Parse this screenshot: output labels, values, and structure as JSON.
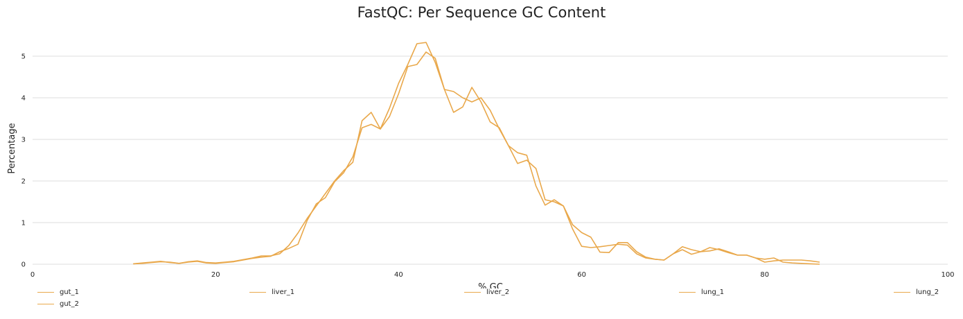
{
  "chart_data": {
    "type": "line",
    "title": "FastQC: Per Sequence GC Content",
    "xlabel": "% GC",
    "ylabel": "Percentage",
    "xlim": [
      0,
      100
    ],
    "ylim": [
      0,
      5.5
    ],
    "xticks": [
      0,
      20,
      40,
      60,
      80,
      100
    ],
    "yticks": [
      0,
      1,
      2,
      3,
      4,
      5
    ],
    "grid": true,
    "legend_position": "bottom",
    "line_color": "#e9a84b",
    "series": [
      {
        "name": "gut_1",
        "x": [
          11,
          12,
          13,
          14,
          15,
          16,
          17,
          18,
          19,
          20,
          21,
          22,
          23,
          24,
          25,
          26,
          27,
          28,
          29,
          30,
          31,
          32,
          33,
          34,
          35,
          36,
          37,
          38,
          39,
          40,
          41,
          42,
          43,
          44,
          45,
          46,
          47,
          48,
          49,
          50,
          51,
          52,
          53,
          54,
          55,
          56,
          57,
          58,
          59,
          60,
          61,
          62,
          63,
          64,
          65,
          66,
          67,
          68,
          69,
          70,
          71,
          72,
          73,
          74,
          75,
          76,
          77,
          78,
          79,
          80,
          81,
          82,
          83,
          84,
          85,
          86
        ],
        "y": [
          0.01,
          0.03,
          0.05,
          0.07,
          0.04,
          0.02,
          0.05,
          0.07,
          0.03,
          0.02,
          0.04,
          0.06,
          0.1,
          0.14,
          0.17,
          0.19,
          0.3,
          0.38,
          0.48,
          1.05,
          1.45,
          1.6,
          1.98,
          2.2,
          2.58,
          3.28,
          3.36,
          3.25,
          3.55,
          4.1,
          4.75,
          4.8,
          5.1,
          4.95,
          4.2,
          4.15,
          4.0,
          3.9,
          4.0,
          3.7,
          3.25,
          2.85,
          2.68,
          2.62,
          1.88,
          1.42,
          1.55,
          1.4,
          0.95,
          0.76,
          0.65,
          0.29,
          0.28,
          0.52,
          0.52,
          0.3,
          0.17,
          0.12,
          0.1,
          0.25,
          0.42,
          0.35,
          0.3,
          0.32,
          0.37,
          0.3,
          0.22,
          0.22,
          0.15,
          0.12,
          0.15,
          0.05,
          0.03,
          0.02,
          0.01,
          0.0
        ]
      },
      {
        "name": "gut_2",
        "x": [
          11,
          12,
          13,
          14,
          15,
          16,
          17,
          18,
          19,
          20,
          21,
          22,
          23,
          24,
          25,
          26,
          27,
          28,
          29,
          30,
          31,
          32,
          33,
          34,
          35,
          36,
          37,
          38,
          39,
          40,
          41,
          42,
          43,
          44,
          45,
          46,
          47,
          48,
          49,
          50,
          51,
          52,
          53,
          54,
          55,
          56,
          57,
          58,
          59,
          60,
          61,
          62,
          63,
          64,
          65,
          66,
          67,
          68,
          69,
          70,
          71,
          72,
          73,
          74,
          75,
          76,
          77,
          78,
          79,
          80,
          81,
          82,
          83,
          84,
          85,
          86
        ],
        "y": [
          0.01,
          0.02,
          0.04,
          0.06,
          0.05,
          0.02,
          0.06,
          0.08,
          0.04,
          0.03,
          0.05,
          0.07,
          0.11,
          0.15,
          0.2,
          0.2,
          0.25,
          0.45,
          0.75,
          1.1,
          1.4,
          1.7,
          2.0,
          2.25,
          2.45,
          3.45,
          3.65,
          3.25,
          3.75,
          4.35,
          4.8,
          5.3,
          5.33,
          4.85,
          4.2,
          3.65,
          3.78,
          4.25,
          3.9,
          3.42,
          3.28,
          2.85,
          2.42,
          2.5,
          2.3,
          1.55,
          1.5,
          1.4,
          0.85,
          0.43,
          0.4,
          0.42,
          0.45,
          0.48,
          0.46,
          0.25,
          0.15,
          0.12,
          0.1,
          0.25,
          0.35,
          0.24,
          0.3,
          0.4,
          0.35,
          0.28,
          0.22,
          0.22,
          0.15,
          0.05,
          0.08,
          0.1,
          0.1,
          0.1,
          0.08,
          0.05
        ]
      },
      {
        "name": "liver_1",
        "x": [],
        "y": []
      },
      {
        "name": "liver_2",
        "x": [],
        "y": []
      },
      {
        "name": "lung_1",
        "x": [],
        "y": []
      },
      {
        "name": "lung_2",
        "x": [],
        "y": []
      }
    ]
  }
}
